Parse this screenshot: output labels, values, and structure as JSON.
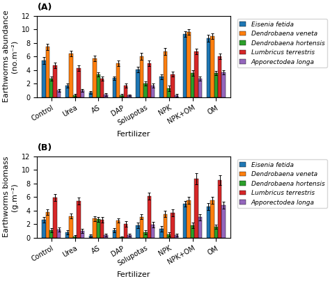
{
  "chart_data": [
    {
      "type": "bar",
      "title": "(A)",
      "xlabel": "Fertilizer",
      "ylabel": "Earthworms abundance\n(no.m⁻²)",
      "categories": [
        "Control",
        "Urea",
        "AS",
        "DAP",
        "Solupotas",
        "NPK",
        "NPK+OM",
        "OM"
      ],
      "series": [
        {
          "name": "Eisenia fetida",
          "values": [
            5.4,
            1.7,
            0.7,
            2.8,
            4.1,
            3.0,
            9.3,
            8.7
          ],
          "errors": [
            0.5,
            0.3,
            0.2,
            0.3,
            0.4,
            0.4,
            0.4,
            0.5
          ]
        },
        {
          "name": "Dendrobaena veneta",
          "values": [
            7.4,
            6.4,
            5.7,
            5.0,
            6.0,
            6.7,
            9.6,
            9.0
          ],
          "errors": [
            0.5,
            0.4,
            0.4,
            0.4,
            0.5,
            0.5,
            0.4,
            0.4
          ]
        },
        {
          "name": "Dendrobaena hortensis",
          "values": [
            2.7,
            0.3,
            3.4,
            0.3,
            2.0,
            1.3,
            3.6,
            3.6
          ],
          "errors": [
            0.3,
            0.2,
            0.3,
            0.2,
            0.3,
            0.4,
            0.4,
            0.3
          ]
        },
        {
          "name": "Lumbricus terrestris",
          "values": [
            4.7,
            4.3,
            2.7,
            1.7,
            5.0,
            3.4,
            6.7,
            6.0
          ],
          "errors": [
            0.4,
            0.4,
            0.3,
            0.3,
            0.4,
            0.4,
            0.4,
            0.4
          ]
        },
        {
          "name": "Apporectodea longa",
          "values": [
            1.0,
            1.0,
            0.4,
            0.3,
            1.7,
            0.3,
            2.7,
            3.7
          ],
          "errors": [
            0.2,
            0.2,
            0.2,
            0.1,
            0.3,
            0.2,
            0.3,
            0.3
          ]
        }
      ],
      "ylim": [
        0,
        12
      ],
      "yticks": [
        0,
        2,
        4,
        6,
        8,
        10,
        12
      ],
      "legend": "right"
    },
    {
      "type": "bar",
      "title": "(B)",
      "xlabel": "Fertilizer",
      "ylabel": "Earthworms biomass\n(g.m⁻²)",
      "categories": [
        "Control",
        "Urea",
        "AS",
        "DAP",
        "Solupotas",
        "NPK",
        "NPK+OM",
        "OM"
      ],
      "series": [
        {
          "name": "Eisenia fetida",
          "values": [
            2.6,
            0.8,
            0.3,
            1.1,
            1.8,
            1.3,
            5.0,
            4.6
          ],
          "errors": [
            0.4,
            0.3,
            0.2,
            0.3,
            0.4,
            0.4,
            0.4,
            0.5
          ]
        },
        {
          "name": "Dendrobaena veneta",
          "values": [
            3.8,
            3.2,
            2.8,
            2.5,
            3.1,
            3.5,
            5.5,
            5.5
          ],
          "errors": [
            0.4,
            0.4,
            0.4,
            0.3,
            0.4,
            0.5,
            0.5,
            0.5
          ]
        },
        {
          "name": "Dendrobaena hortensis",
          "values": [
            1.1,
            0.2,
            2.7,
            0.1,
            0.8,
            0.5,
            1.8,
            1.6
          ],
          "errors": [
            0.3,
            0.2,
            0.4,
            0.1,
            0.3,
            0.3,
            0.4,
            0.3
          ]
        },
        {
          "name": "Lumbricus terrestris",
          "values": [
            5.9,
            5.4,
            2.6,
            2.0,
            6.1,
            3.7,
            8.7,
            8.5
          ],
          "errors": [
            0.5,
            0.5,
            0.4,
            0.4,
            0.5,
            0.5,
            0.8,
            0.7
          ]
        },
        {
          "name": "Apporectodea longa",
          "values": [
            1.2,
            1.0,
            0.4,
            0.4,
            1.9,
            0.4,
            3.0,
            4.8
          ],
          "errors": [
            0.3,
            0.3,
            0.2,
            0.2,
            0.4,
            0.2,
            0.5,
            0.5
          ]
        }
      ],
      "ylim": [
        0,
        12
      ],
      "yticks": [
        0,
        2,
        4,
        6,
        8,
        10,
        12
      ],
      "legend": "right"
    }
  ]
}
